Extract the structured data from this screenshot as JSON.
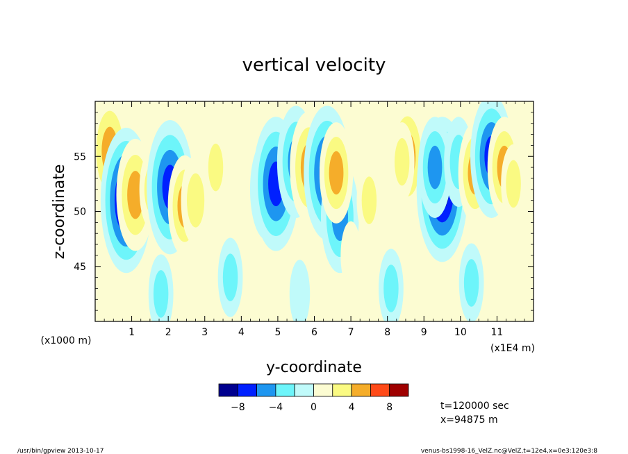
{
  "chart_data": {
    "type": "heatmap",
    "title": "vertical velocity",
    "xlabel": "y-coordinate",
    "ylabel": "z-coordinate",
    "x_units_left": "(x1000 m)",
    "x_units_right": "(x1E4 m)",
    "x_ticks": [
      "1",
      "2",
      "3",
      "4",
      "5",
      "6",
      "7",
      "8",
      "9",
      "10",
      "11"
    ],
    "x_tick_values": [
      1,
      2,
      3,
      4,
      5,
      6,
      7,
      8,
      9,
      10,
      11
    ],
    "y_ticks": [
      "45",
      "50",
      "55"
    ],
    "y_tick_values": [
      45,
      50,
      55
    ],
    "xlim": [
      0,
      12
    ],
    "ylim": [
      40,
      60
    ],
    "colorbar": {
      "colors": [
        "#00008f",
        "#0020ff",
        "#1e96f0",
        "#6df5fa",
        "#c0fafa",
        "#fcfcd2",
        "#fafa82",
        "#f5ad2a",
        "#ff4a18",
        "#9f0000"
      ],
      "tick_labels": [
        "−8",
        "−4",
        "0",
        "4",
        "8"
      ],
      "tick_values": [
        -8,
        -4,
        0,
        4,
        8
      ]
    },
    "blobs": [
      {
        "x": 0.4,
        "z": 55.5,
        "v": 5
      },
      {
        "x": 0.85,
        "z": 51.0,
        "v": -8
      },
      {
        "x": 1.1,
        "z": 51.5,
        "v": 5
      },
      {
        "x": 1.55,
        "z": 52.0,
        "v": 2
      },
      {
        "x": 2.05,
        "z": 52.2,
        "v": -7
      },
      {
        "x": 2.45,
        "z": 50.5,
        "v": 4
      },
      {
        "x": 2.75,
        "z": 51.0,
        "v": 3
      },
      {
        "x": 3.3,
        "z": 54.0,
        "v": 2
      },
      {
        "x": 4.7,
        "z": 52.0,
        "v": -4
      },
      {
        "x": 4.95,
        "z": 52.5,
        "v": -7
      },
      {
        "x": 5.5,
        "z": 54.5,
        "v": -5
      },
      {
        "x": 5.85,
        "z": 54.0,
        "v": 5
      },
      {
        "x": 6.35,
        "z": 53.5,
        "v": -7
      },
      {
        "x": 6.7,
        "z": 49.5,
        "v": -5
      },
      {
        "x": 6.6,
        "z": 53.5,
        "v": 4
      },
      {
        "x": 7.5,
        "z": 51.0,
        "v": 2
      },
      {
        "x": 8.55,
        "z": 55.0,
        "v": 5
      },
      {
        "x": 8.4,
        "z": 54.5,
        "v": 2
      },
      {
        "x": 9.5,
        "z": 52.0,
        "v": -8
      },
      {
        "x": 9.3,
        "z": 54.0,
        "v": -4
      },
      {
        "x": 9.95,
        "z": 54.5,
        "v": -3
      },
      {
        "x": 10.4,
        "z": 53.5,
        "v": 4
      },
      {
        "x": 10.85,
        "z": 55.0,
        "v": -6
      },
      {
        "x": 11.2,
        "z": 54.0,
        "v": 4
      },
      {
        "x": 11.45,
        "z": 52.5,
        "v": 2
      },
      {
        "x": 3.7,
        "z": 44.0,
        "v": -2
      },
      {
        "x": 8.1,
        "z": 43.0,
        "v": -2
      },
      {
        "x": 10.3,
        "z": 43.5,
        "v": -2
      },
      {
        "x": 1.8,
        "z": 42.5,
        "v": -2
      },
      {
        "x": 5.6,
        "z": 42.5,
        "v": -1
      },
      {
        "x": 7.0,
        "z": 46.0,
        "v": 1
      }
    ]
  },
  "annotations": {
    "time": "t=120000 sec",
    "xpos": "x=94875 m",
    "footer_left": "/usr/bin/gpview   2013-10-17",
    "footer_right": "venus-bs1998-16_VelZ.nc@VelZ,t=12e4,x=0e3:120e3:8"
  }
}
